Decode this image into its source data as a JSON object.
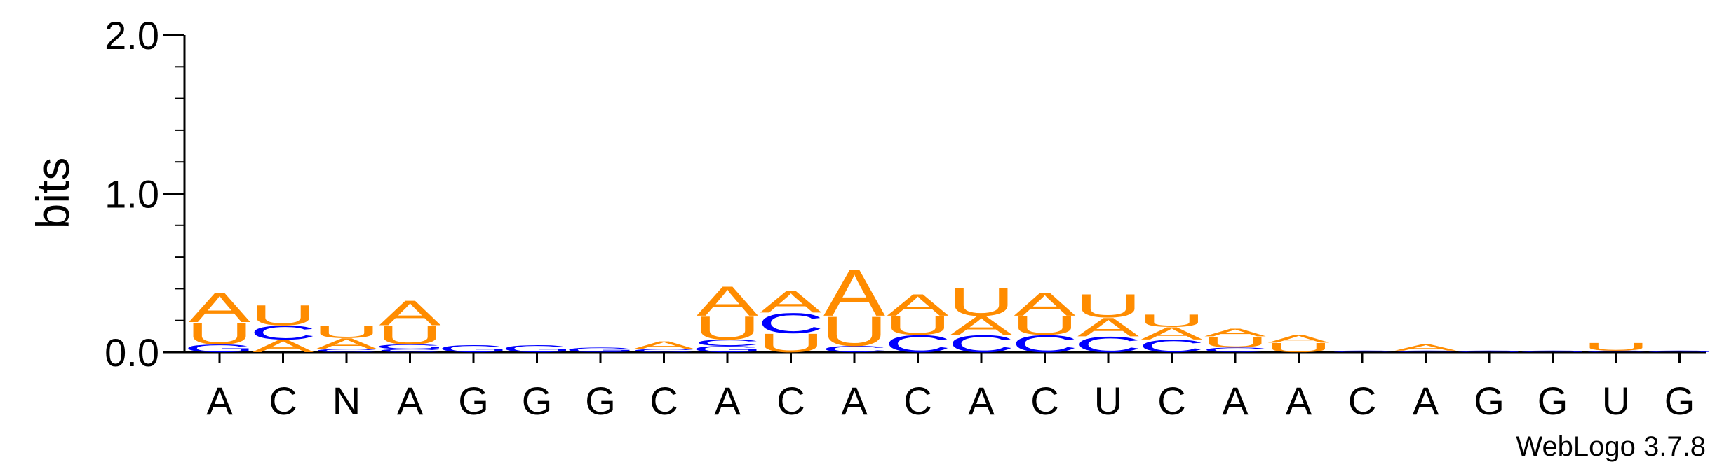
{
  "chart_data": {
    "type": "sequence-logo",
    "ylabel": "bits",
    "ylim": [
      0,
      2.0
    ],
    "yticks": [
      "0.0",
      "1.0",
      "2.0"
    ],
    "positions": [
      "A",
      "C",
      "N",
      "A",
      "G",
      "G",
      "G",
      "C",
      "A",
      "C",
      "A",
      "C",
      "A",
      "C",
      "U",
      "C",
      "A",
      "A",
      "C",
      "A",
      "G",
      "G",
      "U",
      "G"
    ],
    "colors": {
      "A": "#ff8c00",
      "U": "#ff8c00",
      "C": "#0000ff",
      "G": "#0000ff"
    },
    "stacks": [
      [
        {
          "l": "G",
          "h": 0.05
        },
        {
          "l": "U",
          "h": 0.14
        },
        {
          "l": "A",
          "h": 0.19
        }
      ],
      [
        {
          "l": "A",
          "h": 0.08
        },
        {
          "l": "C",
          "h": 0.09
        },
        {
          "l": "U",
          "h": 0.13
        }
      ],
      [
        {
          "l": "C",
          "h": 0.02
        },
        {
          "l": "A",
          "h": 0.07
        },
        {
          "l": "U",
          "h": 0.08
        }
      ],
      [
        {
          "l": "C",
          "h": 0.02
        },
        {
          "l": "G",
          "h": 0.03
        },
        {
          "l": "U",
          "h": 0.12
        },
        {
          "l": "A",
          "h": 0.16
        }
      ],
      [
        {
          "l": "G",
          "h": 0.045
        }
      ],
      [
        {
          "l": "G",
          "h": 0.045
        }
      ],
      [
        {
          "l": "G",
          "h": 0.03
        }
      ],
      [
        {
          "l": "C",
          "h": 0.02
        },
        {
          "l": "A",
          "h": 0.05
        }
      ],
      [
        {
          "l": "G",
          "h": 0.04
        },
        {
          "l": "C",
          "h": 0.04
        },
        {
          "l": "U",
          "h": 0.15
        },
        {
          "l": "A",
          "h": 0.19
        }
      ],
      [
        {
          "l": "U",
          "h": 0.12
        },
        {
          "l": "C",
          "h": 0.13
        },
        {
          "l": "A",
          "h": 0.14
        }
      ],
      [
        {
          "l": "C",
          "h": 0.04
        },
        {
          "l": "U",
          "h": 0.19
        },
        {
          "l": "A",
          "h": 0.3
        }
      ],
      [
        {
          "l": "C",
          "h": 0.11
        },
        {
          "l": "U",
          "h": 0.12
        },
        {
          "l": "A",
          "h": 0.14
        }
      ],
      [
        {
          "l": "C",
          "h": 0.11
        },
        {
          "l": "A",
          "h": 0.12
        },
        {
          "l": "U",
          "h": 0.18
        }
      ],
      [
        {
          "l": "C",
          "h": 0.11
        },
        {
          "l": "U",
          "h": 0.12
        },
        {
          "l": "A",
          "h": 0.15
        }
      ],
      [
        {
          "l": "C",
          "h": 0.1
        },
        {
          "l": "A",
          "h": 0.12
        },
        {
          "l": "U",
          "h": 0.15
        }
      ],
      [
        {
          "l": "C",
          "h": 0.08
        },
        {
          "l": "A",
          "h": 0.08
        },
        {
          "l": "U",
          "h": 0.08
        }
      ],
      [
        {
          "l": "C",
          "h": 0.03
        },
        {
          "l": "U",
          "h": 0.07
        },
        {
          "l": "A",
          "h": 0.05
        }
      ],
      [
        {
          "l": "U",
          "h": 0.06
        },
        {
          "l": "A",
          "h": 0.05
        }
      ],
      [
        {
          "l": "C",
          "h": 0.01
        }
      ],
      [
        {
          "l": "C",
          "h": 0.01
        },
        {
          "l": "A",
          "h": 0.04
        }
      ],
      [
        {
          "l": "G",
          "h": 0.01
        }
      ],
      [
        {
          "l": "G",
          "h": 0.01
        }
      ],
      [
        {
          "l": "C",
          "h": 0.01
        },
        {
          "l": "U",
          "h": 0.05
        }
      ],
      [
        {
          "l": "G",
          "h": 0.01
        }
      ]
    ]
  },
  "credit": "WebLogo 3.7.8"
}
